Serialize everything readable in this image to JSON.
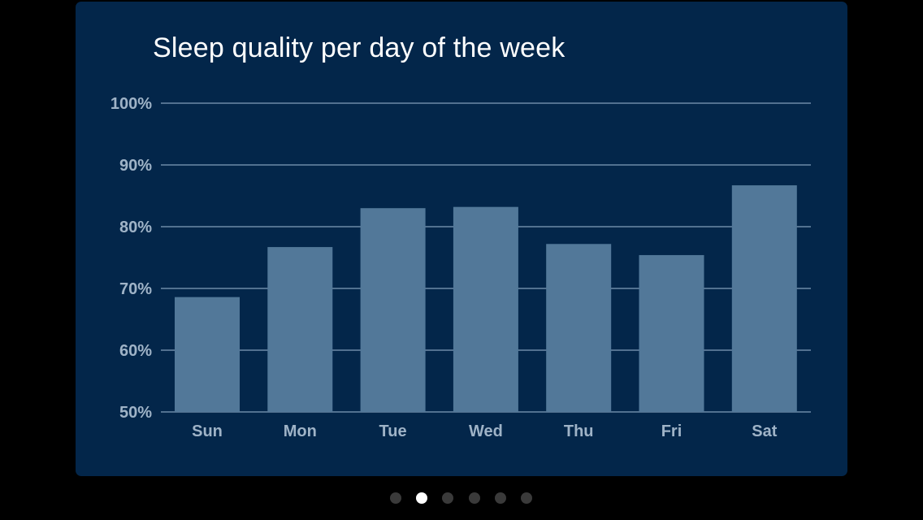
{
  "colors": {
    "page_background": "#000000",
    "card_background": "#03264a",
    "bar": "#527899",
    "gridline": "#6d8aa8",
    "tick_label": "#9fb3c7",
    "title": "#ffffff",
    "dot_active": "#ffffff",
    "dot_inactive": "#3a3a3a"
  },
  "pager": {
    "count": 6,
    "active_index": 1
  },
  "chart_data": {
    "type": "bar",
    "title": "Sleep quality per day of the week",
    "xlabel": "",
    "ylabel": "",
    "categories": [
      "Sun",
      "Mon",
      "Tue",
      "Wed",
      "Thu",
      "Fri",
      "Sat"
    ],
    "values": [
      68.6,
      76.7,
      83.0,
      83.2,
      77.2,
      75.4,
      86.7
    ],
    "unit": "%",
    "ylim": [
      50,
      100
    ],
    "yticks": [
      50,
      60,
      70,
      80,
      90,
      100
    ],
    "ytick_labels": [
      "50%",
      "60%",
      "70%",
      "80%",
      "90%",
      "100%"
    ],
    "grid": true,
    "legend": "none"
  }
}
